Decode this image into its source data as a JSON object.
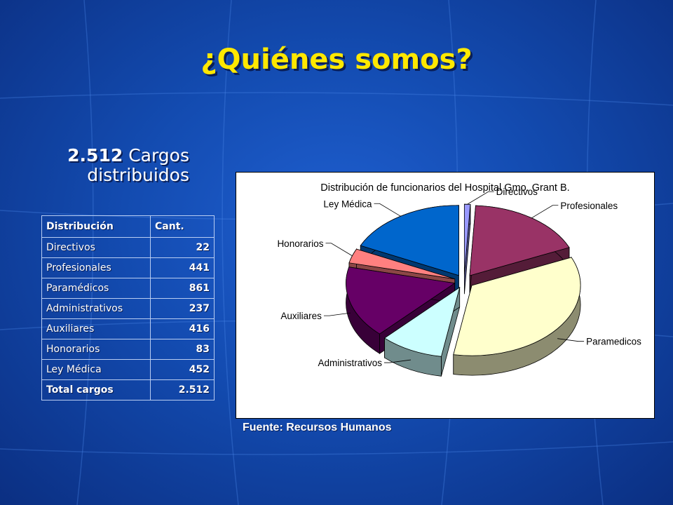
{
  "slide": {
    "title": "¿Quiénes somos?",
    "subtitle_number": "2.512",
    "subtitle_word": "Cargos",
    "subtitle_line2": "distribuidos",
    "source": "Fuente: Recursos Humanos"
  },
  "table": {
    "headers": [
      "Distribución",
      "Cant."
    ],
    "rows": [
      {
        "label": "Directivos",
        "value": "22"
      },
      {
        "label": "Profesionales",
        "value": "441"
      },
      {
        "label": "Paramédicos",
        "value": "861"
      },
      {
        "label": "Administrativos",
        "value": "237"
      },
      {
        "label": "Auxiliares",
        "value": "416"
      },
      {
        "label": "Honorarios",
        "value": "83"
      },
      {
        "label": "Ley Médica",
        "value": "452"
      }
    ],
    "total": {
      "label": "Total cargos",
      "value": "2.512"
    }
  },
  "chart_data": {
    "type": "pie",
    "title": "Distribución de funcionarios del Hospital Gmo. Grant B.",
    "slices": [
      {
        "label": "Directivos",
        "value": 22,
        "color": "#9999ff"
      },
      {
        "label": "Profesionales",
        "value": 441,
        "color": "#993366"
      },
      {
        "label": "Paramedicos",
        "value": 861,
        "color": "#ffffcc"
      },
      {
        "label": "Administrativos",
        "value": 237,
        "color": "#ccffff"
      },
      {
        "label": "Auxiliares",
        "value": 416,
        "color": "#660066"
      },
      {
        "label": "Honorarios",
        "value": 83,
        "color": "#ff8080"
      },
      {
        "label": "Ley Médica",
        "value": 452,
        "color": "#0066cc"
      }
    ],
    "exploded": true,
    "3d": true
  }
}
